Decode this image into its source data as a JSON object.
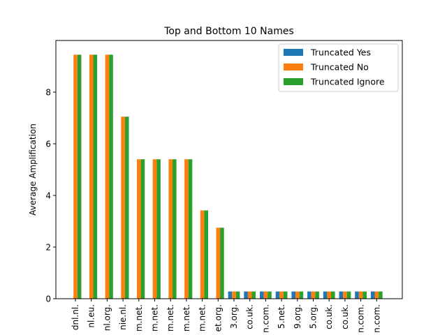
{
  "chart_data": {
    "type": "bar",
    "title": "Top and Bottom 10 Names",
    "xlabel": "",
    "ylabel": "Average Amplification",
    "ylim": [
      0,
      10.0
    ],
    "yticks": [
      0,
      2,
      4,
      6,
      8
    ],
    "categories": [
      "dnl.nl.",
      "nl.eu.",
      "nl.org.",
      "nie.nl.",
      "m.net.",
      "m.net.",
      "m.net.",
      "m.net.",
      "m.net.",
      "et.org.",
      "3.org.",
      "co.uk.",
      "n.com.",
      "5.net.",
      "9.org.",
      "5.org.",
      "co.uk.",
      "co.uk.",
      "n.com.",
      "n.com."
    ],
    "series": [
      {
        "name": "Truncated Yes",
        "color": "#1f77b4",
        "values": [
          0,
          0,
          0,
          0,
          0,
          0,
          0,
          0,
          0,
          0,
          0.28,
          0.28,
          0.28,
          0.28,
          0.28,
          0.28,
          0.28,
          0.28,
          0.28,
          0.28
        ]
      },
      {
        "name": "Truncated No",
        "color": "#ff7f0e",
        "values": [
          9.45,
          9.45,
          9.45,
          7.05,
          5.4,
          5.4,
          5.4,
          5.4,
          3.42,
          2.75,
          0.28,
          0.28,
          0.28,
          0.28,
          0.28,
          0.28,
          0.28,
          0.28,
          0.28,
          0.28
        ]
      },
      {
        "name": "Truncated Ignore",
        "color": "#2ca02c",
        "values": [
          9.45,
          9.45,
          9.45,
          7.05,
          5.4,
          5.4,
          5.4,
          5.4,
          3.42,
          2.75,
          0.28,
          0.28,
          0.28,
          0.28,
          0.28,
          0.28,
          0.28,
          0.28,
          0.28,
          0.28
        ]
      }
    ],
    "legend_position": "upper-right",
    "grid": false
  }
}
